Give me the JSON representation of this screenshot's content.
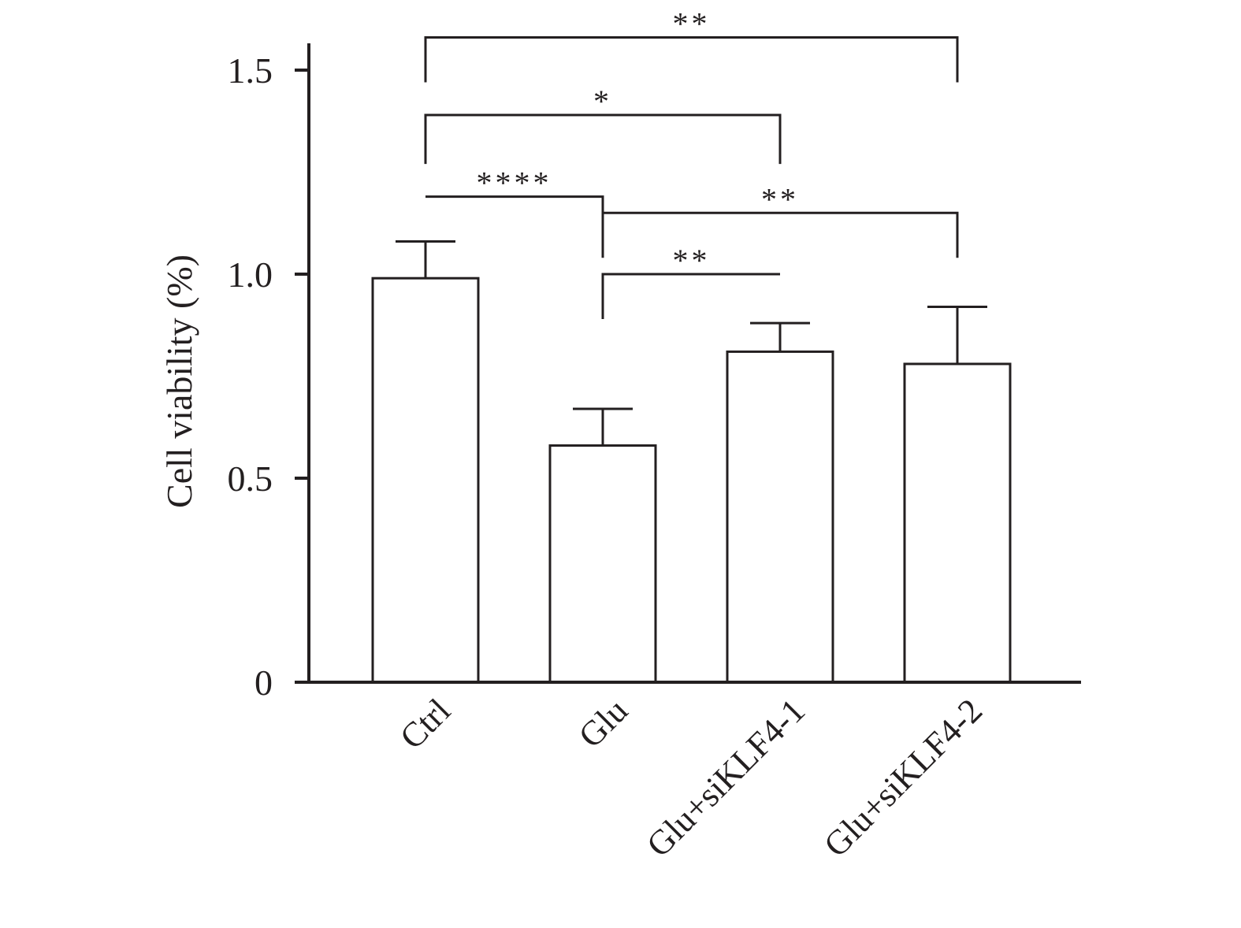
{
  "chart_data": {
    "type": "bar",
    "title": "",
    "xlabel": "",
    "ylabel": "Cell viability (%)",
    "ylim": [
      0,
      1.5
    ],
    "yticks": [
      {
        "value": 0,
        "label": "0"
      },
      {
        "value": 0.5,
        "label": "0.5"
      },
      {
        "value": 1.0,
        "label": "1.0"
      },
      {
        "value": 1.5,
        "label": "1.5"
      }
    ],
    "categories": [
      "Ctrl",
      "Glu",
      "Glu+siKLF4-1",
      "Glu+siKLF4-2"
    ],
    "values": [
      0.99,
      0.58,
      0.81,
      0.78
    ],
    "errors": [
      0.09,
      0.09,
      0.07,
      0.14
    ],
    "grid": false,
    "legend": "none",
    "bar_fill": "#ffffff",
    "stroke_color": "#231f20",
    "significance": [
      {
        "from": 0,
        "to": 1,
        "label": "****",
        "y": 1.19,
        "drop_left": 1.19,
        "drop_right": 1.08
      },
      {
        "from": 0,
        "to": 2,
        "label": "*",
        "y": 1.39,
        "drop_left": 1.27,
        "drop_right": 1.27
      },
      {
        "from": 0,
        "to": 3,
        "label": "**",
        "y": 1.58,
        "drop_left": 1.47,
        "drop_right": 1.47
      },
      {
        "from": 1,
        "to": 2,
        "label": "**",
        "y": 1.0,
        "drop_left": 0.89,
        "drop_right": 1.0
      },
      {
        "from": 1,
        "to": 3,
        "label": "**",
        "y": 1.15,
        "drop_left": 1.04,
        "drop_right": 1.04
      }
    ]
  }
}
